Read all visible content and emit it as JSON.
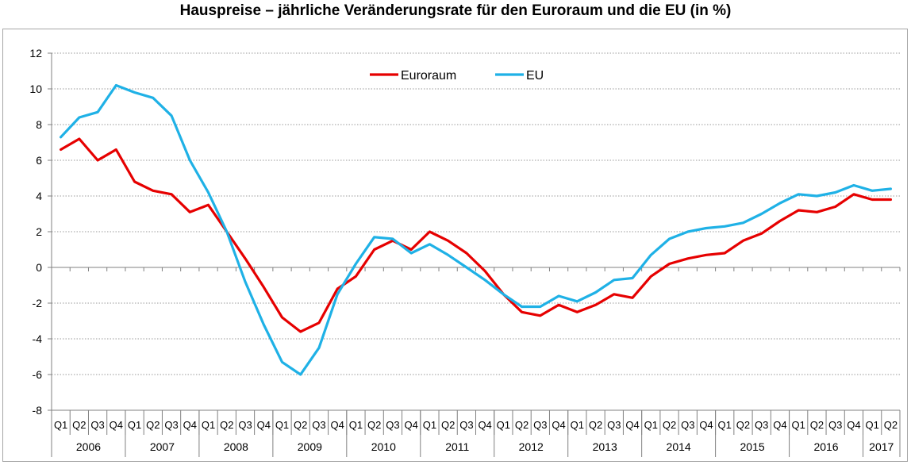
{
  "title": "Hauspreise – jährliche Veränderungsrate für den Euroraum und die EU (in %)",
  "chart_data": {
    "type": "line",
    "title": "Hauspreise – jährliche Veränderungsrate für den Euroraum und die EU (in %)",
    "xlabel": "",
    "ylabel": "",
    "ylim": [
      -8,
      12
    ],
    "yticks": [
      12,
      10,
      8,
      6,
      4,
      2,
      0,
      -2,
      -4,
      -6,
      -8
    ],
    "grid": true,
    "legend": "top-center",
    "years": [
      "2006",
      "2007",
      "2008",
      "2009",
      "2010",
      "2011",
      "2012",
      "2013",
      "2014",
      "2015",
      "2016",
      "2017"
    ],
    "quarters_per_year": [
      4,
      4,
      4,
      4,
      4,
      4,
      4,
      4,
      4,
      4,
      4,
      2
    ],
    "x": [
      "Q1",
      "Q2",
      "Q3",
      "Q4",
      "Q1",
      "Q2",
      "Q3",
      "Q4",
      "Q1",
      "Q2",
      "Q3",
      "Q4",
      "Q1",
      "Q2",
      "Q3",
      "Q4",
      "Q1",
      "Q2",
      "Q3",
      "Q4",
      "Q1",
      "Q2",
      "Q3",
      "Q4",
      "Q1",
      "Q2",
      "Q3",
      "Q4",
      "Q1",
      "Q2",
      "Q3",
      "Q4",
      "Q1",
      "Q2",
      "Q3",
      "Q4",
      "Q1",
      "Q2",
      "Q3",
      "Q4",
      "Q1",
      "Q2",
      "Q3",
      "Q4",
      "Q1",
      "Q2"
    ],
    "series": [
      {
        "name": "Euroraum",
        "color": "#e60000",
        "values": [
          6.6,
          7.2,
          6.0,
          6.6,
          4.8,
          4.3,
          4.1,
          3.1,
          3.5,
          2.0,
          0.5,
          -1.1,
          -2.8,
          -3.6,
          -3.1,
          -1.2,
          -0.5,
          1.0,
          1.5,
          1.0,
          2.0,
          1.5,
          0.8,
          -0.2,
          -1.5,
          -2.5,
          -2.7,
          -2.1,
          -2.5,
          -2.1,
          -1.5,
          -1.7,
          -0.5,
          0.2,
          0.5,
          0.7,
          0.8,
          1.5,
          1.9,
          2.6,
          3.2,
          3.1,
          3.4,
          4.1,
          3.8,
          3.8
        ]
      },
      {
        "name": "EU",
        "color": "#1fb1e6",
        "values": [
          7.3,
          8.4,
          8.7,
          10.2,
          9.8,
          9.5,
          8.5,
          6.0,
          4.2,
          2.0,
          -0.8,
          -3.2,
          -5.3,
          -6.0,
          -4.5,
          -1.5,
          0.2,
          1.7,
          1.6,
          0.8,
          1.3,
          0.7,
          0.0,
          -0.7,
          -1.5,
          -2.2,
          -2.2,
          -1.6,
          -1.9,
          -1.4,
          -0.7,
          -0.6,
          0.7,
          1.6,
          2.0,
          2.2,
          2.3,
          2.5,
          3.0,
          3.6,
          4.1,
          4.0,
          4.2,
          4.6,
          4.3,
          4.4
        ]
      }
    ]
  }
}
